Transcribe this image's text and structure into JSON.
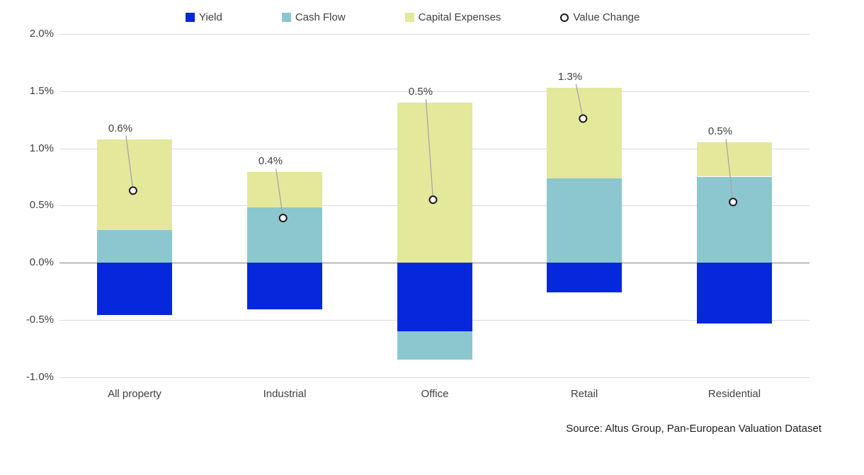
{
  "legend": {
    "items": [
      {
        "label": "Yield",
        "marker": "square",
        "color": "#0528dc"
      },
      {
        "label": "Cash Flow",
        "marker": "square",
        "color": "#8cc7d0"
      },
      {
        "label": "Capital Expenses",
        "marker": "square",
        "color": "#e3e89b"
      },
      {
        "label": "Value Change",
        "marker": "circle",
        "color": "#ffffff"
      }
    ]
  },
  "source": {
    "text": "Source:  Altus Group, Pan-European Valuation Dataset"
  },
  "chart_data": {
    "type": "bar",
    "stacked": true,
    "title": "",
    "xlabel": "",
    "ylabel": "",
    "categories": [
      "All property",
      "Industrial",
      "Office",
      "Retail",
      "Residential"
    ],
    "series": [
      {
        "name": "Yield",
        "color": "#0528dc",
        "values": [
          -0.46,
          -0.41,
          -0.6,
          -0.26,
          -0.53
        ]
      },
      {
        "name": "Cash Flow",
        "color": "#8cc7d0",
        "values": [
          0.29,
          0.48,
          -0.25,
          0.74,
          0.75
        ]
      },
      {
        "name": "Capital Expenses",
        "color": "#e3e89b",
        "values": [
          0.79,
          0.31,
          1.4,
          0.79,
          0.3
        ]
      }
    ],
    "point_series": {
      "name": "Value Change",
      "marker": "open-circle",
      "values": [
        0.63,
        0.39,
        0.55,
        1.26,
        0.53
      ],
      "labels": [
        "0.6%",
        "0.4%",
        "0.5%",
        "1.3%",
        "0.5%"
      ]
    },
    "y_ticks": [
      "2.0%",
      "1.5%",
      "1.0%",
      "0.5%",
      "0.0%",
      "-0.5%",
      "-1.0%"
    ],
    "y_tick_values": [
      2.0,
      1.5,
      1.0,
      0.5,
      0.0,
      -0.5,
      -1.0
    ],
    "ylim": [
      -1.0,
      2.0
    ],
    "grid": true,
    "legend_position": "top",
    "colors": {
      "gridline": "#d9d9d9",
      "zero_line": "#808080",
      "leader_line": "#a6a6a6",
      "marker_fill": "#ffffff",
      "marker_stroke": "#1a1a1a",
      "text": "#404040"
    }
  }
}
